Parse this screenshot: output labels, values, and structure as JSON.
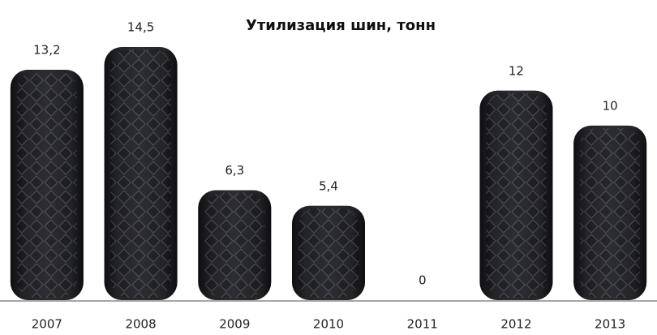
{
  "chart_data": {
    "type": "bar",
    "title": "Утилизация шин, тонн",
    "categories": [
      "2007",
      "2008",
      "2009",
      "2010",
      "2011",
      "2012",
      "2013"
    ],
    "values": [
      13.2,
      14.5,
      6.3,
      5.4,
      0,
      12,
      10
    ],
    "value_labels": [
      "13,2",
      "14,5",
      "6,3",
      "5,4",
      "0",
      "12",
      "10"
    ],
    "color": "#1a1a1e"
  }
}
